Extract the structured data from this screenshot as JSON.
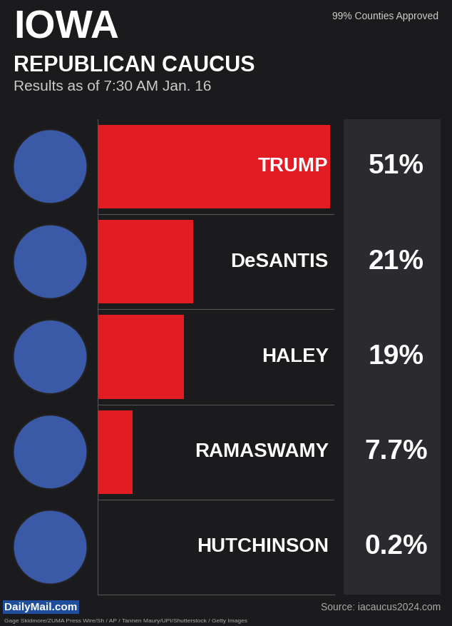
{
  "chart_data": {
    "type": "bar",
    "orientation": "horizontal",
    "title": "IOWA",
    "subtitle": "REPUBLICAN CAUCUS",
    "annotations": [
      "Results as of 7:30 AM Jan. 16",
      "99% Counties Approved",
      "Source: iacaucus2024.com",
      "DailyMail.com",
      "Gage Skidmore/ZUMA Press Wire/Sh / AP / Tannen Maury/UPI/Shutterstock / Getty Images"
    ],
    "categories": [
      "TRUMP",
      "DeSANTIS",
      "HALEY",
      "RAMASWAMY",
      "HUTCHINSON"
    ],
    "values": [
      51,
      21,
      19,
      7.7,
      0.2
    ],
    "value_labels": [
      "51%",
      "21%",
      "19%",
      "7.7%",
      "0.2%"
    ],
    "data_labels": true,
    "tick_labels": false,
    "grid": false,
    "color": "#e31b23",
    "xlim": [
      0,
      52
    ],
    "xticks": []
  }
}
